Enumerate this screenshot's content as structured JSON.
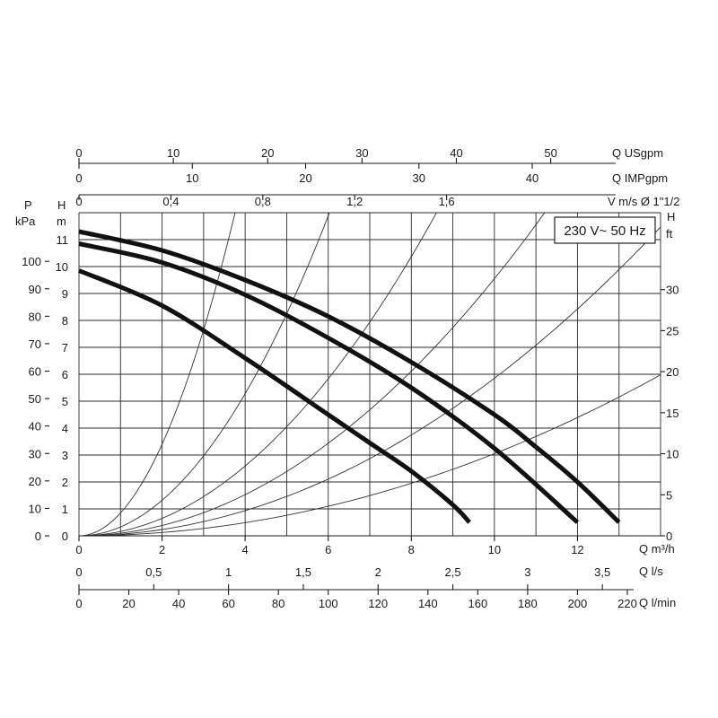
{
  "chart_data": {
    "type": "line",
    "title": "",
    "badge": "230 V~ 50 Hz",
    "axes": {
      "x_bottom_m3h": {
        "label": "Q m³/h",
        "range": [
          0,
          14
        ],
        "ticks": [
          "0",
          "2",
          "4",
          "6",
          "8",
          "10",
          "12"
        ],
        "tick_values": [
          0,
          2,
          4,
          6,
          8,
          10,
          12
        ]
      },
      "x_bottom_ls": {
        "label": "Q l/s",
        "ticks": [
          "0",
          "0,5",
          "1",
          "1,5",
          "2",
          "2,5",
          "3",
          "3,5"
        ],
        "tick_values": [
          0,
          0.5,
          1,
          1.5,
          2,
          2.5,
          3,
          3.5
        ]
      },
      "x_bottom_lmin": {
        "label": "Q l/min",
        "ticks": [
          "0",
          "20",
          "40",
          "60",
          "80",
          "100",
          "120",
          "140",
          "160",
          "180",
          "200",
          "220"
        ],
        "tick_values": [
          0,
          20,
          40,
          60,
          80,
          100,
          120,
          140,
          160,
          180,
          200,
          220
        ]
      },
      "x_top_usgpm": {
        "label": "Q USgpm",
        "ticks": [
          "0",
          "10",
          "20",
          "30",
          "40",
          "50"
        ],
        "tick_values": [
          0,
          10,
          20,
          30,
          40,
          50
        ]
      },
      "x_top_impgpm": {
        "label": "Q IMPgpm",
        "ticks": [
          "0",
          "10",
          "20",
          "30",
          "40"
        ],
        "tick_values": [
          0,
          10,
          20,
          30,
          40
        ]
      },
      "x_top_velocity": {
        "label": "V m/s Ø 1\"1/2",
        "ticks": [
          "0",
          "0,4",
          "0,8",
          "1,2",
          "1,6"
        ],
        "tick_values": [
          0,
          0.4,
          0.8,
          1.2,
          1.6
        ]
      },
      "y_left_m": {
        "label_top": "H",
        "label": "m",
        "range": [
          0,
          12
        ],
        "ticks": [
          "0",
          "1",
          "2",
          "3",
          "4",
          "5",
          "6",
          "7",
          "8",
          "9",
          "10",
          "11"
        ],
        "tick_values": [
          0,
          1,
          2,
          3,
          4,
          5,
          6,
          7,
          8,
          9,
          10,
          11
        ]
      },
      "y_left_kpa": {
        "label_top": "P",
        "label": "kPa",
        "ticks": [
          "0",
          "10",
          "20",
          "30",
          "40",
          "50",
          "60",
          "70",
          "80",
          "90",
          "100"
        ],
        "tick_values": [
          0,
          10,
          20,
          30,
          40,
          50,
          60,
          70,
          80,
          90,
          100
        ]
      },
      "y_right_ft": {
        "label_top": "H",
        "label": "ft",
        "ticks": [
          "0",
          "5",
          "10",
          "15",
          "20",
          "25",
          "30"
        ],
        "tick_values": [
          0,
          5,
          10,
          15,
          20,
          25,
          30
        ]
      }
    },
    "grid": true,
    "series": [
      {
        "x": [
          0,
          2,
          4,
          6,
          7,
          8,
          9,
          9.4
        ],
        "y": [
          9.85,
          8.55,
          6.6,
          4.5,
          3.45,
          2.4,
          1.15,
          0.5
        ]
      },
      {
        "x": [
          0,
          2,
          4,
          6,
          8,
          10,
          12
        ],
        "y": [
          10.85,
          10.15,
          8.95,
          7.35,
          5.5,
          3.25,
          0.5
        ]
      },
      {
        "x": [
          0,
          2,
          4,
          6,
          8,
          10,
          11,
          12,
          13
        ],
        "y": [
          11.3,
          10.6,
          9.5,
          8.15,
          6.45,
          4.5,
          3.3,
          2.0,
          0.5
        ]
      }
    ],
    "system_curves": [
      {
        "k": 0.85
      },
      {
        "k": 0.33
      },
      {
        "k": 0.162
      },
      {
        "k": 0.0955
      },
      {
        "k": 0.0585
      },
      {
        "k": 0.0305
      }
    ]
  }
}
